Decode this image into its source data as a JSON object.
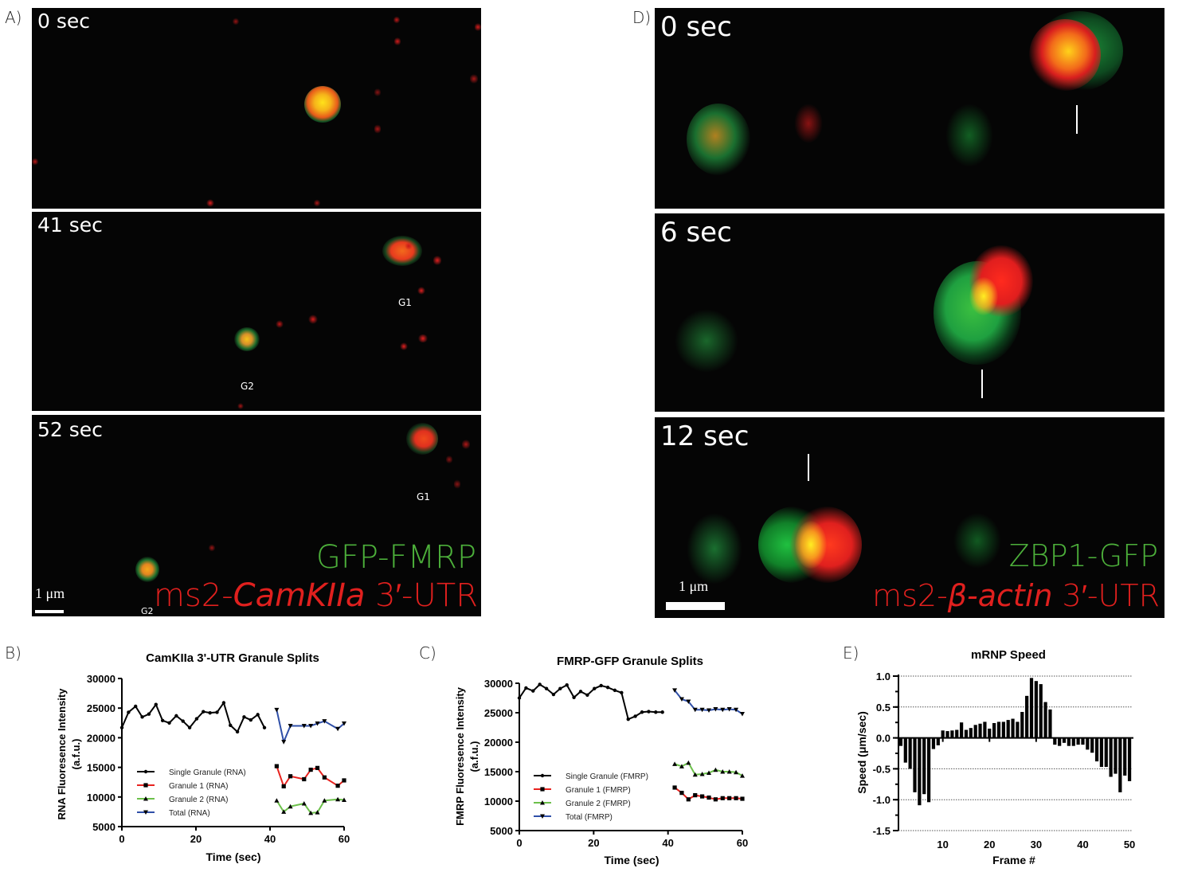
{
  "panels": {
    "A": {
      "label": "A)",
      "frames": [
        {
          "time": "0 sec",
          "markers": []
        },
        {
          "time": "41 sec",
          "markers": [
            "G1",
            "G2"
          ]
        },
        {
          "time": "52 sec",
          "markers": [
            "G1",
            "G2"
          ]
        }
      ],
      "scale": "1 μm",
      "legend_green": "GFP-FMRP",
      "legend_red_prefix": "ms2-",
      "legend_red_italic": "CamKIIa",
      "legend_red_suffix": " 3′-UTR"
    },
    "D": {
      "label": "D)",
      "frames": [
        {
          "time": "0 sec"
        },
        {
          "time": "6 sec"
        },
        {
          "time": "12 sec"
        }
      ],
      "scale": "1 μm",
      "legend_green": "ZBP1-GFP",
      "legend_red_prefix": "ms2-",
      "legend_red_italic": "β-actin",
      "legend_red_suffix": " 3′-UTR"
    },
    "B": {
      "label": "B)"
    },
    "C": {
      "label": "C)"
    },
    "E": {
      "label": "E)"
    }
  },
  "colors": {
    "green_channel": "#4caf3a",
    "red_channel": "#e0201e",
    "series_black": "#000000",
    "series_red": "#e8231f",
    "series_green": "#6cc04a",
    "series_blue": "#2f4fa8"
  },
  "chart_data": [
    {
      "id": "B",
      "type": "line",
      "title": "CamKIIa 3'-UTR Granule Splits",
      "xlabel": "Time (sec)",
      "ylabel": "RNA Fluoresence Intensity\n(a.f.u.)",
      "ylabel_line1": "RNA Fluoresence Intensity",
      "ylabel_line2": "(a.f.u.)",
      "xlim": [
        0,
        60
      ],
      "ylim": [
        5000,
        30000
      ],
      "xticks": [
        0,
        20,
        40,
        60
      ],
      "yticks": [
        5000,
        10000,
        15000,
        20000,
        25000,
        30000
      ],
      "legend_position": "middle-left",
      "series": [
        {
          "name": "Single Granule (RNA)",
          "color": "#000000",
          "marker": "dot",
          "x": [
            0,
            1.8,
            3.7,
            5.5,
            7.3,
            9.2,
            11,
            12.8,
            14.7,
            16.5,
            18.3,
            20.2,
            22,
            23.8,
            25.7,
            27.5,
            29.3,
            31.2,
            33,
            34.8,
            36.7,
            38.5
          ],
          "y": [
            21700,
            24300,
            25300,
            23500,
            24000,
            25600,
            22900,
            22500,
            23700,
            22800,
            21700,
            23200,
            24400,
            24200,
            24300,
            25900,
            22100,
            21000,
            23500,
            23000,
            23900,
            21700
          ]
        },
        {
          "name": "Granule 1 (RNA)",
          "color": "#e8231f",
          "marker": "square",
          "x": [
            41.8,
            43.7,
            45.5,
            49.2,
            51,
            52.8,
            54.7,
            58.3,
            60
          ],
          "y": [
            15200,
            11800,
            13500,
            13000,
            14600,
            14900,
            13300,
            11900,
            12800
          ]
        },
        {
          "name": "Granule 2 (RNA)",
          "color": "#6cc04a",
          "marker": "triangle-up",
          "x": [
            41.8,
            43.7,
            45.5,
            49.2,
            51,
            52.8,
            54.7,
            58.3,
            60
          ],
          "y": [
            9400,
            7500,
            8400,
            8900,
            7300,
            7400,
            9400,
            9600,
            9500
          ]
        },
        {
          "name": "Total (RNA)",
          "color": "#2f4fa8",
          "marker": "triangle-down",
          "x": [
            41.8,
            43.7,
            45.5,
            49.2,
            51,
            52.8,
            54.7,
            58.3,
            60
          ],
          "y": [
            24700,
            19300,
            22000,
            22000,
            22000,
            22400,
            22800,
            21500,
            22400
          ]
        }
      ]
    },
    {
      "id": "C",
      "type": "line",
      "title": "FMRP-GFP Granule Splits",
      "xlabel": "Time (sec)",
      "ylabel_line1": "FMRP Fluoresence Intensity",
      "ylabel_line2": "(a.f.u.)",
      "xlim": [
        0,
        60
      ],
      "ylim": [
        5000,
        30000
      ],
      "xticks": [
        0,
        20,
        40,
        60
      ],
      "yticks": [
        5000,
        10000,
        15000,
        20000,
        25000,
        30000
      ],
      "legend_position": "bottom-left",
      "series": [
        {
          "name": "Single Granule (FMRP)",
          "color": "#000000",
          "marker": "dot",
          "x": [
            0,
            1.8,
            3.7,
            5.5,
            7.3,
            9.2,
            11,
            12.8,
            14.7,
            16.5,
            18.3,
            20.2,
            22,
            23.8,
            25.7,
            27.5,
            29.3,
            31.2,
            33,
            34.8,
            36.7,
            38.5
          ],
          "y": [
            27500,
            29200,
            28700,
            29800,
            29100,
            28100,
            29100,
            29700,
            27600,
            28600,
            28000,
            29100,
            29600,
            29300,
            28800,
            28400,
            23900,
            24400,
            25100,
            25200,
            25100,
            25100
          ]
        },
        {
          "name": "Granule 1 (FMRP)",
          "color": "#e8231f",
          "marker": "square",
          "x": [
            41.8,
            43.7,
            45.5,
            47.3,
            49.2,
            51,
            52.8,
            54.7,
            56.5,
            58.3,
            60
          ],
          "y": [
            12300,
            11400,
            10300,
            11000,
            10800,
            10600,
            10300,
            10500,
            10500,
            10500,
            10400
          ]
        },
        {
          "name": "Granule 2 (FMRP)",
          "color": "#6cc04a",
          "marker": "triangle-up",
          "x": [
            41.8,
            43.7,
            45.5,
            47.3,
            49.2,
            51,
            52.8,
            54.7,
            56.5,
            58.3,
            60
          ],
          "y": [
            16300,
            15900,
            16500,
            14500,
            14600,
            14800,
            15300,
            15000,
            15000,
            14900,
            14300
          ]
        },
        {
          "name": "Total (FMRP)",
          "color": "#2f4fa8",
          "marker": "triangle-down",
          "x": [
            41.8,
            43.7,
            45.5,
            47.3,
            49.2,
            51,
            52.8,
            54.7,
            56.5,
            58.3,
            60
          ],
          "y": [
            28800,
            27300,
            26900,
            25500,
            25500,
            25400,
            25600,
            25500,
            25600,
            25500,
            24800
          ]
        }
      ]
    },
    {
      "id": "E",
      "type": "bar",
      "title": "mRNP Speed",
      "xlabel": "Frame #",
      "ylabel": "Speed (μm/sec)",
      "xlim": [
        0.5,
        50.5
      ],
      "ylim": [
        -1.5,
        1.0
      ],
      "xticks": [
        10,
        20,
        30,
        40,
        50
      ],
      "yticks": [
        -1.5,
        -1.0,
        -0.5,
        0.0,
        0.5,
        1.0
      ],
      "ytick_labels": [
        "-1.5",
        "-1.0",
        "-0.5",
        "0.0",
        "0.5",
        "1.0"
      ],
      "grid": "horizontal-dotted",
      "categories": [
        1,
        2,
        3,
        4,
        5,
        6,
        7,
        8,
        9,
        10,
        11,
        12,
        13,
        14,
        15,
        16,
        17,
        18,
        19,
        20,
        21,
        22,
        23,
        24,
        25,
        26,
        27,
        28,
        29,
        30,
        31,
        32,
        33,
        34,
        35,
        36,
        37,
        38,
        39,
        40,
        41,
        42,
        43,
        44,
        45,
        46,
        47,
        48,
        49,
        50
      ],
      "values": [
        -0.13,
        -0.4,
        -0.5,
        -0.88,
        -1.09,
        -0.91,
        -1.04,
        -0.18,
        -0.12,
        0.12,
        0.11,
        0.12,
        0.13,
        0.25,
        0.13,
        0.16,
        0.21,
        0.23,
        0.26,
        0.15,
        0.24,
        0.26,
        0.26,
        0.29,
        0.31,
        0.26,
        0.42,
        0.68,
        0.97,
        0.92,
        0.87,
        0.58,
        0.46,
        -0.11,
        -0.13,
        -0.08,
        -0.13,
        -0.13,
        -0.11,
        -0.11,
        -0.19,
        -0.24,
        -0.38,
        -0.47,
        -0.47,
        -0.63,
        -0.58,
        -0.88,
        -0.61,
        -0.7
      ]
    }
  ]
}
